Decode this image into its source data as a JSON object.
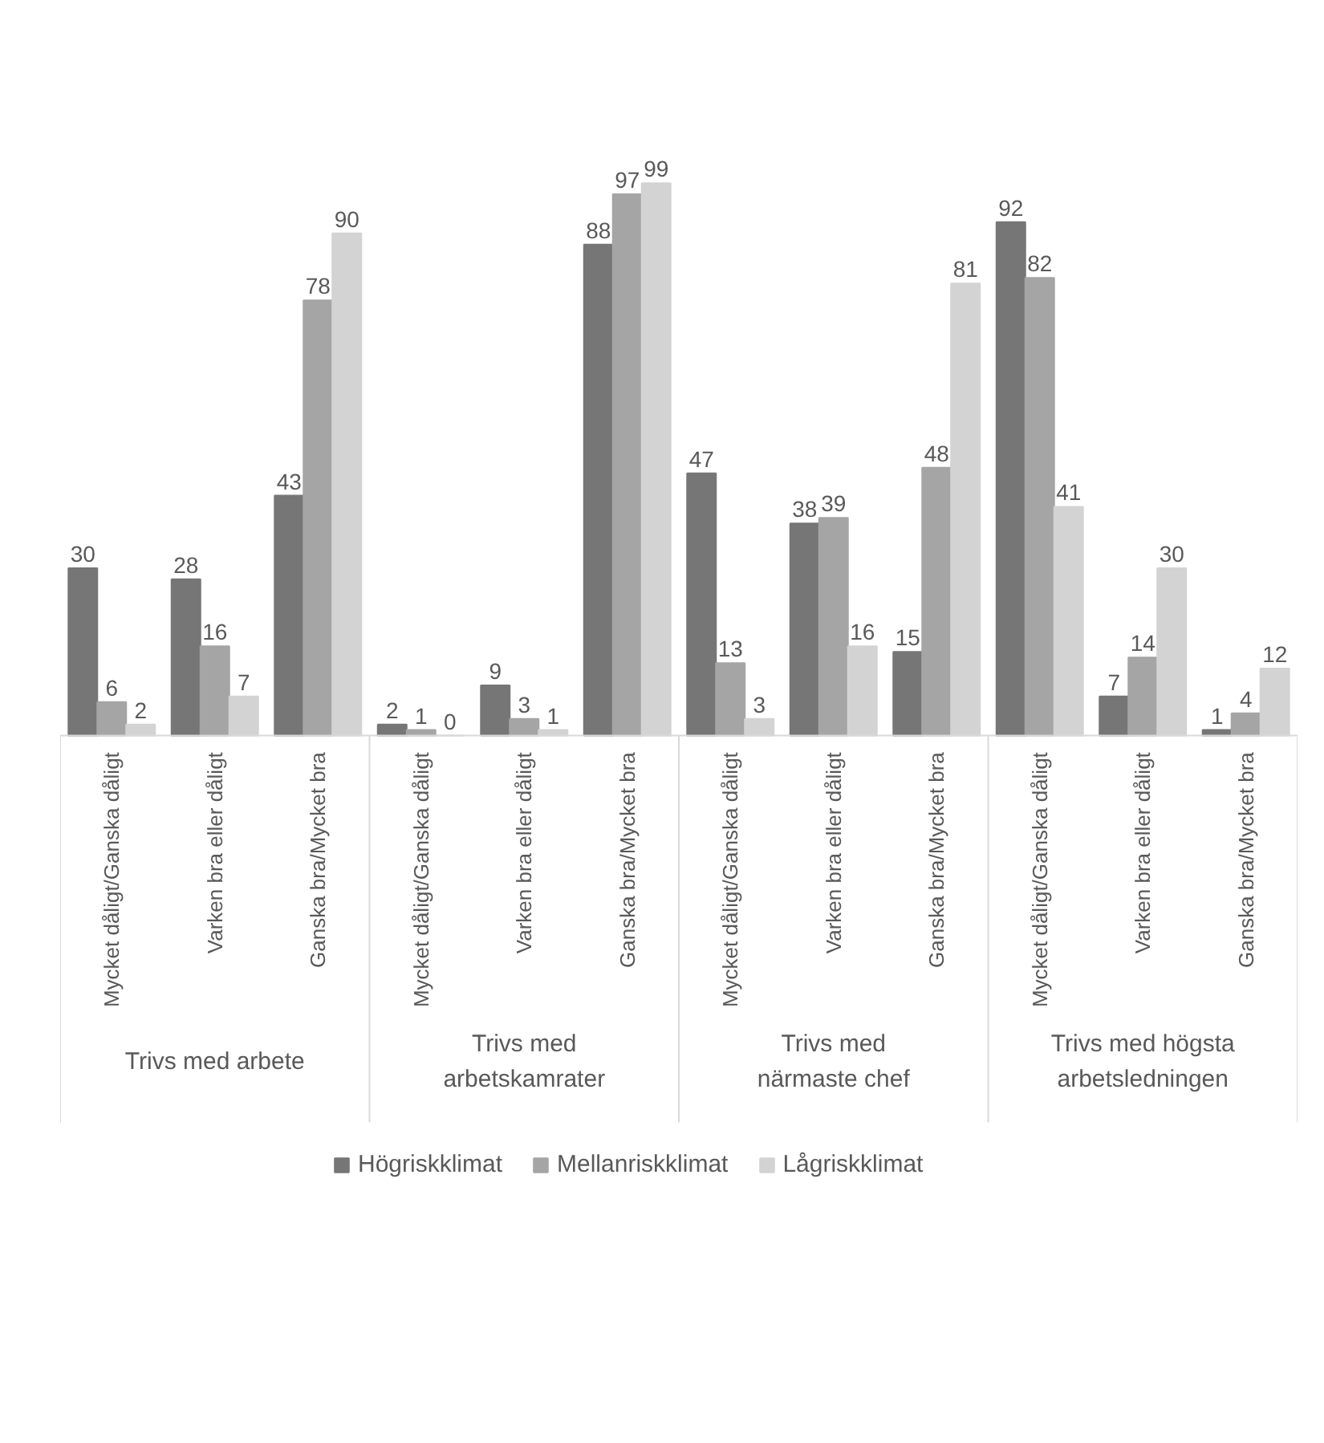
{
  "chart_data": {
    "type": "bar",
    "categories": [
      "Mycket dåligt/Ganska dåligt",
      "Varken bra eller dåligt",
      "Ganska bra/Mycket bra",
      "Mycket dåligt/Ganska dåligt",
      "Varken bra eller dåligt",
      "Ganska bra/Mycket bra",
      "Mycket dåligt/Ganska dåligt",
      "Varken bra eller dåligt",
      "Ganska bra/Mycket bra",
      "Mycket dåligt/Ganska dåligt",
      "Varken bra eller dåligt",
      "Ganska bra/Mycket bra"
    ],
    "series": [
      {
        "name": "Högriskklimat",
        "color": "#767676",
        "values": [
          30,
          28,
          43,
          2,
          9,
          88,
          47,
          38,
          15,
          92,
          7,
          1
        ]
      },
      {
        "name": "Mellanriskklimat",
        "color": "#a5a5a5",
        "values": [
          6,
          16,
          78,
          1,
          3,
          97,
          13,
          39,
          48,
          82,
          14,
          4
        ]
      },
      {
        "name": "Lågriskklimat",
        "color": "#d3d3d3",
        "values": [
          2,
          7,
          90,
          0,
          1,
          99,
          3,
          16,
          81,
          41,
          30,
          12
        ]
      }
    ],
    "annotations": [
      "Trivs med arbete",
      "Trivs med arbetskamrater",
      "Trivs med närmaste chef",
      "Trivs med högsta arbetsledningen"
    ],
    "data_labels": true,
    "legend": "bottom",
    "grid": false
  }
}
